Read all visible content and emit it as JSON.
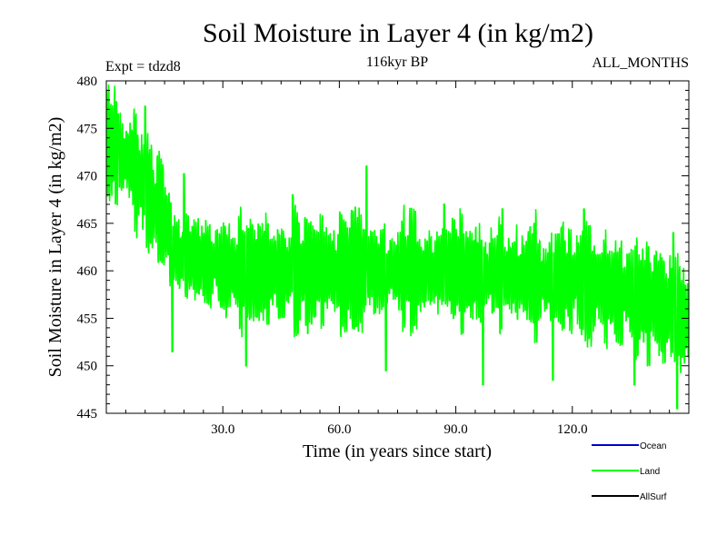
{
  "chart_data": {
    "type": "line",
    "title": "Soil Moisture in Layer 4 (in kg/m2)",
    "subtitle_left": "Expt = tdzd8",
    "subtitle_center": "116kyr BP",
    "subtitle_right": "ALL_MONTHS",
    "xlabel": "Time (in years since start)",
    "ylabel": "Soil Moisture in Layer 4 (in kg/m2)",
    "xlim": [
      0,
      150
    ],
    "ylim": [
      445,
      480
    ],
    "xticks": [
      30,
      60,
      90,
      120
    ],
    "xtick_labels": [
      "30.0",
      "60.0",
      "90.0",
      "120.0"
    ],
    "yticks": [
      445,
      450,
      455,
      460,
      465,
      470,
      475,
      480
    ],
    "ytick_labels": [
      "445",
      "450",
      "455",
      "460",
      "465",
      "470",
      "475",
      "480"
    ],
    "series": [
      {
        "name": "Ocean",
        "color": "#0000cc",
        "values": []
      },
      {
        "name": "Land",
        "color": "#00ff00",
        "points_per_year": 12,
        "trend": [
          [
            0,
            473.5
          ],
          [
            5,
            472
          ],
          [
            10,
            469
          ],
          [
            14,
            466
          ],
          [
            18,
            462
          ],
          [
            25,
            461
          ],
          [
            35,
            460
          ],
          [
            60,
            460
          ],
          [
            90,
            460
          ],
          [
            120,
            459
          ],
          [
            140,
            457
          ],
          [
            150,
            455
          ]
        ],
        "seasonal_amplitude": 4.5,
        "min_excursions": [
          [
            17,
            451.5
          ],
          [
            36,
            450
          ],
          [
            48,
            449
          ],
          [
            72,
            449.5
          ],
          [
            97,
            448
          ],
          [
            115,
            448.5
          ],
          [
            136,
            448
          ],
          [
            147,
            445.5
          ]
        ],
        "max_excursions": [
          [
            3,
            476.5
          ],
          [
            10,
            477.3
          ],
          [
            20,
            470.2
          ],
          [
            48,
            468
          ],
          [
            67,
            471
          ],
          [
            87,
            467
          ],
          [
            102,
            466.5
          ],
          [
            123,
            466.5
          ],
          [
            146,
            464
          ]
        ]
      },
      {
        "name": "AllSurf",
        "color": "#000000",
        "values": []
      }
    ],
    "legend": {
      "position": "bottom-right",
      "entries": [
        "Ocean",
        "Land",
        "AllSurf"
      ]
    },
    "grid": false
  }
}
